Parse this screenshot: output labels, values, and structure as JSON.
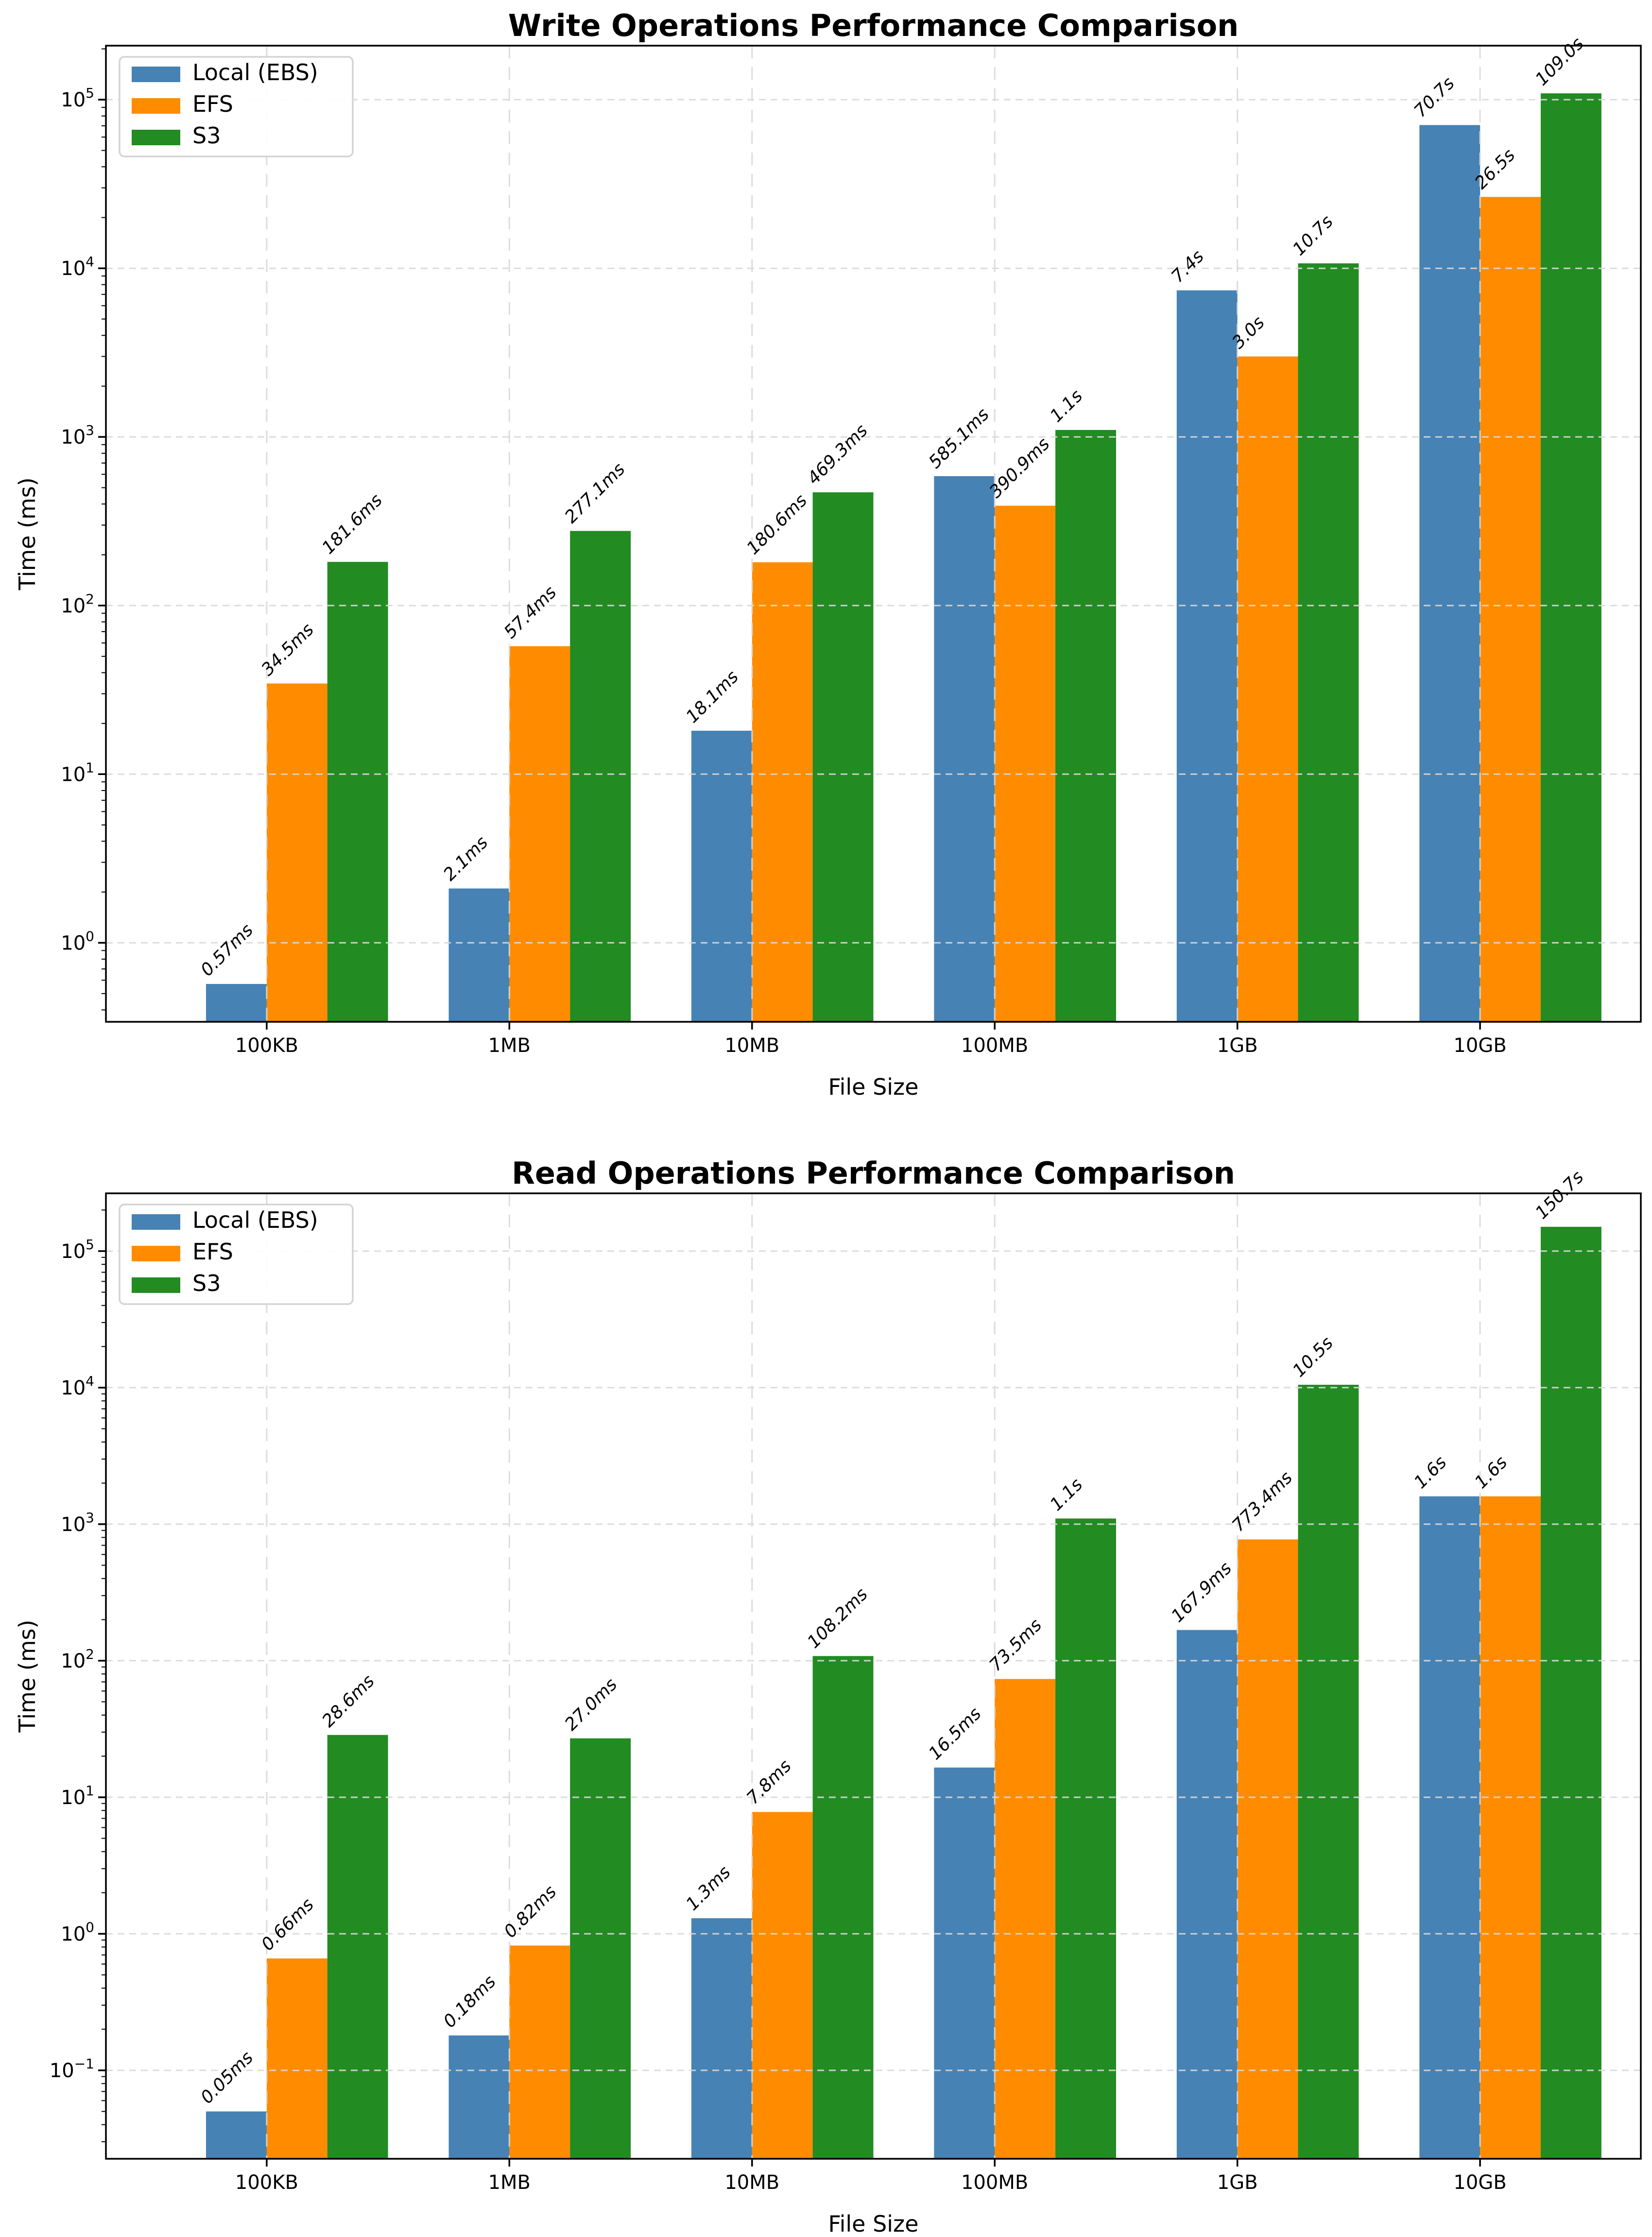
{
  "figure": {
    "background": "#ffffff",
    "grid_color": "#d9d9d9",
    "spine_color": "#000000"
  },
  "chart_data": [
    {
      "type": "bar",
      "title": "Write Operations Performance Comparison",
      "xlabel": "File Size",
      "ylabel": "Time (ms)",
      "categories": [
        "100KB",
        "1MB",
        "10MB",
        "100MB",
        "1GB",
        "10GB"
      ],
      "series": [
        {
          "name": "Local (EBS)",
          "color": "#4682B4",
          "values_ms": [
            0.57,
            2.1,
            18.1,
            585.1,
            7400,
            70700
          ],
          "labels": [
            "0.57ms",
            "2.1ms",
            "18.1ms",
            "585.1ms",
            "7.4s",
            "70.7s"
          ]
        },
        {
          "name": "EFS",
          "color": "#FF8C00",
          "values_ms": [
            34.5,
            57.4,
            180.6,
            390.9,
            3000,
            26500
          ],
          "labels": [
            "34.5ms",
            "57.4ms",
            "180.6ms",
            "390.9ms",
            "3.0s",
            "26.5s"
          ]
        },
        {
          "name": "S3",
          "color": "#228B22",
          "values_ms": [
            181.6,
            277.1,
            469.3,
            1100,
            10700,
            109000
          ],
          "labels": [
            "181.6ms",
            "277.1ms",
            "469.3ms",
            "1.1s",
            "10.7s",
            "109.0s"
          ]
        }
      ],
      "y_axis": {
        "scale": "log",
        "unit": "ms",
        "tick_exponents": [
          0,
          1,
          2,
          3,
          4,
          5
        ],
        "ylim": [
          0.34,
          209000
        ]
      },
      "x_axis": {
        "label": "File Size"
      },
      "grid": true,
      "legend_position": "upper left"
    },
    {
      "type": "bar",
      "title": "Read Operations Performance Comparison",
      "xlabel": "File Size",
      "ylabel": "Time (ms)",
      "categories": [
        "100KB",
        "1MB",
        "10MB",
        "100MB",
        "1GB",
        "10GB"
      ],
      "series": [
        {
          "name": "Local (EBS)",
          "color": "#4682B4",
          "values_ms": [
            0.05,
            0.18,
            1.3,
            16.5,
            167.9,
            1600
          ],
          "labels": [
            "0.05ms",
            "0.18ms",
            "1.3ms",
            "16.5ms",
            "167.9ms",
            "1.6s"
          ]
        },
        {
          "name": "EFS",
          "color": "#FF8C00",
          "values_ms": [
            0.66,
            0.82,
            7.8,
            73.5,
            773.4,
            1600
          ],
          "labels": [
            "0.66ms",
            "0.82ms",
            "7.8ms",
            "73.5ms",
            "773.4ms",
            "1.6s"
          ]
        },
        {
          "name": "S3",
          "color": "#228B22",
          "values_ms": [
            28.6,
            27.0,
            108.2,
            1100,
            10500,
            150700
          ],
          "labels": [
            "28.6ms",
            "27.0ms",
            "108.2ms",
            "1.1s",
            "10.5s",
            "150.7s"
          ]
        }
      ],
      "y_axis": {
        "scale": "log",
        "unit": "ms",
        "tick_exponents": [
          -1,
          0,
          1,
          2,
          3,
          4,
          5
        ],
        "ylim": [
          0.0225,
          265000
        ]
      },
      "x_axis": {
        "label": "File Size"
      },
      "grid": true,
      "legend_position": "upper left"
    }
  ]
}
